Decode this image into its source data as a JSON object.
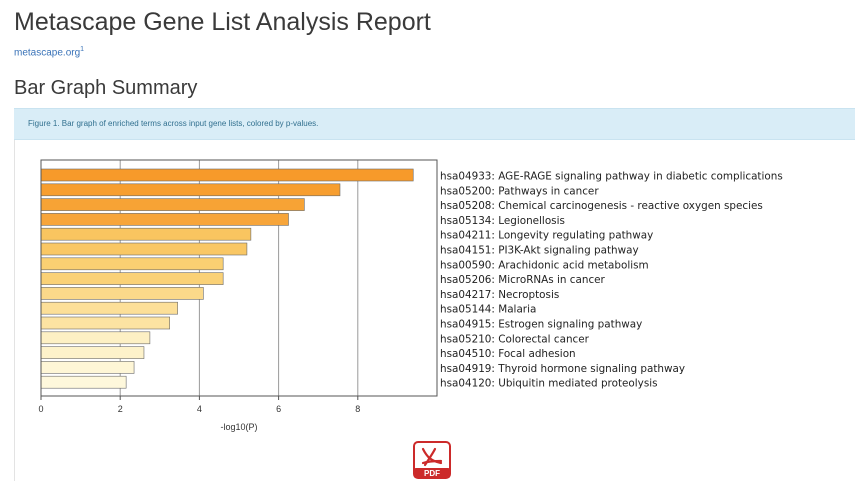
{
  "report": {
    "title": "Metascape Gene List Analysis Report",
    "site_link": "metascape.org",
    "site_link_sup": "1"
  },
  "section": {
    "title": "Bar Graph Summary",
    "caption": "Figure 1. Bar graph of enriched terms across input gene lists, colored by p-values."
  },
  "colors": {
    "caption_bg": "#d9edf7",
    "caption_text": "#31708f",
    "link": "#3a73b8",
    "pdf_red": "#cc2a2a"
  },
  "icons": {
    "download": "pdf-icon"
  },
  "chart_data": {
    "type": "bar",
    "orientation": "horizontal",
    "title": "",
    "xlabel": "-log10(P)",
    "ylabel": "",
    "xlim": [
      0,
      10
    ],
    "xticks": [
      0,
      2,
      4,
      6,
      8
    ],
    "grid": true,
    "categories": [
      "hsa04933: AGE-RAGE signaling pathway in diabetic complications",
      "hsa05200: Pathways in cancer",
      "hsa05208: Chemical carcinogenesis - reactive oxygen species",
      "hsa05134: Legionellosis",
      "hsa04211: Longevity regulating pathway",
      "hsa04151: PI3K-Akt signaling pathway",
      "hsa00590: Arachidonic acid metabolism",
      "hsa05206: MicroRNAs in cancer",
      "hsa04217: Necroptosis",
      "hsa05144: Malaria",
      "hsa04915: Estrogen signaling pathway",
      "hsa05210: Colorectal cancer",
      "hsa04510: Focal adhesion",
      "hsa04919: Thyroid hormone signaling pathway",
      "hsa04120: Ubiquitin mediated proteolysis"
    ],
    "values": [
      9.4,
      7.55,
      6.65,
      6.25,
      5.3,
      5.2,
      4.6,
      4.6,
      4.1,
      3.45,
      3.25,
      2.75,
      2.6,
      2.35,
      2.15
    ],
    "bar_colors": [
      "#f79a2a",
      "#f79e2f",
      "#f7a335",
      "#f7a53a",
      "#f9c560",
      "#f9c764",
      "#fad072",
      "#fad176",
      "#fbd98a",
      "#fcdf98",
      "#fce3a2",
      "#fdf0c4",
      "#fdf2ca",
      "#fef6d6",
      "#fef8dc"
    ]
  }
}
